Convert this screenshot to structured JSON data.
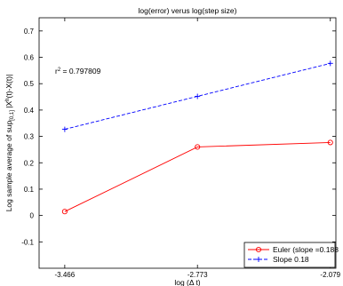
{
  "chart_data": {
    "type": "line",
    "title": "log(error) verus log(step size)",
    "xlabel": "log (Δ t)",
    "ylabel_prefix": "Log sample average of sup",
    "ylabel_sub": "[0,1]",
    "ylabel_middle": " |X",
    "ylabel_sup": "h",
    "ylabel_suffix": "(t)-X(t)|",
    "annotation_prefix": "r",
    "annotation_sup": "2",
    "annotation_suffix": " = 0.797809",
    "x": [
      -3.466,
      -2.773,
      -2.079
    ],
    "xticks": [
      -3.466,
      -2.773,
      -2.079
    ],
    "xtick_labels": [
      "-3.466",
      "-2.773",
      "-2.079"
    ],
    "xlim": [
      -3.6,
      -2.05
    ],
    "ylim": [
      -0.2,
      0.75
    ],
    "yticks": [
      -0.1,
      0,
      0.1,
      0.2,
      0.3,
      0.4,
      0.5,
      0.6,
      0.7
    ],
    "ytick_labels": [
      "-0.1",
      "0",
      "0.1",
      "0.2",
      "0.3",
      "0.4",
      "0.5",
      "0.6",
      "0.7"
    ],
    "grid": false,
    "legend_position": "bottom-right",
    "series": [
      {
        "name": "Euler (slope =0.188",
        "values": [
          0.015,
          0.26,
          0.277
        ],
        "color": "#ff0000",
        "line_style": "solid",
        "marker": "circle"
      },
      {
        "name": "Slope 0.18",
        "values": [
          0.327,
          0.452,
          0.577
        ],
        "color": "#0000ff",
        "line_style": "dashed",
        "marker": "plus"
      }
    ]
  }
}
